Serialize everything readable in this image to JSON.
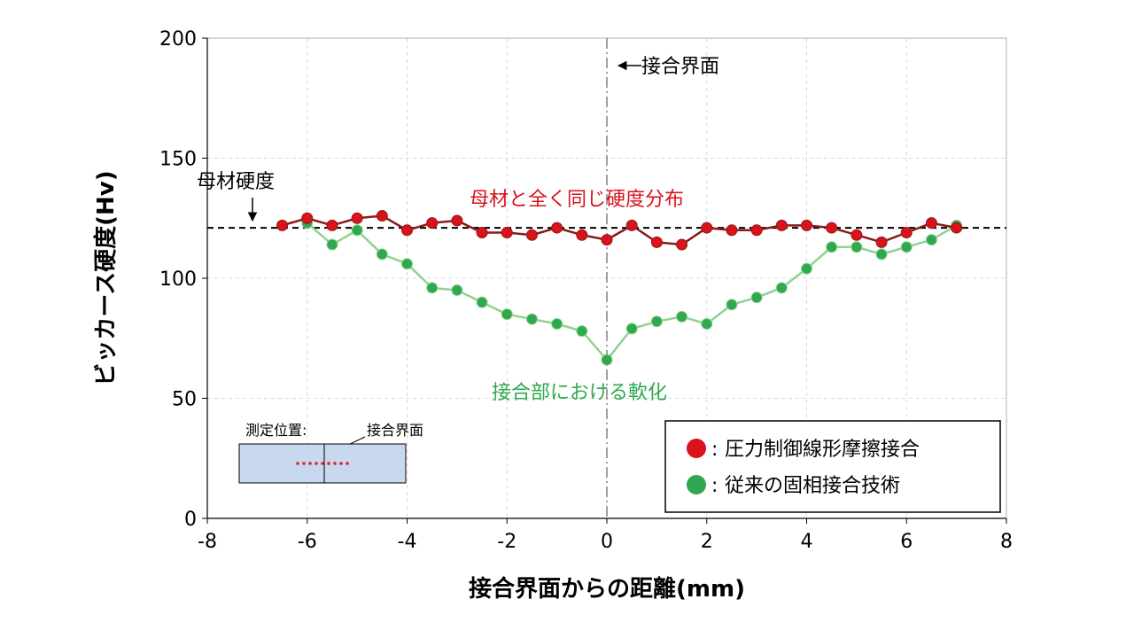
{
  "chart_data": {
    "type": "line",
    "xlabel": "接合界面からの距離(mm)",
    "ylabel": "ビッカース硬度(Hv)",
    "xlim": [
      -8,
      8
    ],
    "ylim": [
      0,
      200
    ],
    "xticks": [
      -8,
      -6,
      -4,
      -2,
      0,
      2,
      4,
      6,
      8
    ],
    "yticks": [
      0,
      50,
      100,
      150,
      200
    ],
    "grid": true,
    "reference_line": {
      "value": 121,
      "label": "母材硬度"
    },
    "interface_line": {
      "value": 0,
      "label": "接合界面"
    },
    "series": [
      {
        "name": "圧力制御線形摩擦接合",
        "color": "#d9121b",
        "line_color": "#8b1a1a",
        "x": [
          -6.5,
          -6,
          -5.5,
          -5,
          -4.5,
          -4,
          -3.5,
          -3,
          -2.5,
          -2,
          -1.5,
          -1,
          -0.5,
          0,
          0.5,
          1,
          1.5,
          2,
          2.5,
          3,
          3.5,
          4,
          4.5,
          5,
          5.5,
          6,
          6.5,
          7
        ],
        "y": [
          122,
          125,
          122,
          125,
          126,
          120,
          123,
          124,
          119,
          119,
          118,
          121,
          118,
          116,
          122,
          115,
          114,
          121,
          120,
          120,
          122,
          122,
          121,
          118,
          115,
          119,
          123,
          121
        ]
      },
      {
        "name": "従来の固相接合技術",
        "color": "#2fa84f",
        "line_color": "#8fd38f",
        "x": [
          -6,
          -5.5,
          -5,
          -4.5,
          -4,
          -3.5,
          -3,
          -2.5,
          -2,
          -1.5,
          -1,
          -0.5,
          0,
          0.5,
          1,
          1.5,
          2,
          2.5,
          3,
          3.5,
          4,
          4.5,
          5,
          5.5,
          6,
          6.5,
          7
        ],
        "y": [
          123,
          114,
          120,
          110,
          106,
          96,
          95,
          90,
          85,
          83,
          81,
          78,
          66,
          79,
          82,
          84,
          81,
          89,
          92,
          96,
          104,
          113,
          113,
          110,
          113,
          116,
          122
        ]
      }
    ],
    "annotations": {
      "red_note": "母材と全く同じ硬度分布",
      "green_note": "接合部における軟化"
    },
    "inset": {
      "title": "測定位置:",
      "pointer_label": "接合界面"
    },
    "legend": {
      "placement": "bottom-right",
      "separator": ":"
    }
  }
}
